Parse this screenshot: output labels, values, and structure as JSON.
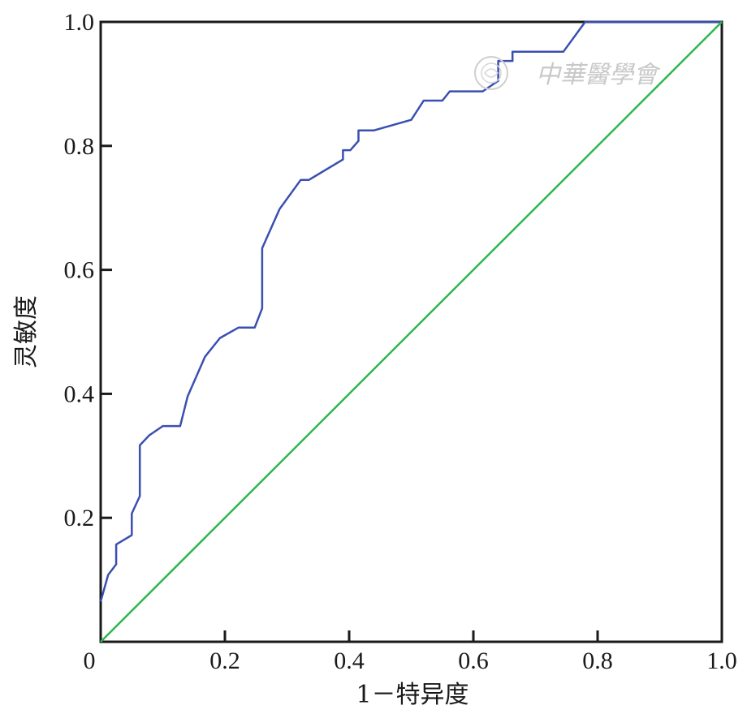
{
  "chart_data": {
    "type": "line",
    "xlabel": "1－特异度",
    "ylabel": "灵敏度",
    "xlim": [
      0,
      1
    ],
    "ylim": [
      0,
      1
    ],
    "x_ticks": [
      {
        "value": 0,
        "label": "0"
      },
      {
        "value": 0.2,
        "label": "0.2"
      },
      {
        "value": 0.4,
        "label": "0.4"
      },
      {
        "value": 0.6,
        "label": "0.6"
      },
      {
        "value": 0.8,
        "label": "0.8"
      },
      {
        "value": 1.0,
        "label": "1.0"
      }
    ],
    "y_ticks": [
      {
        "value": 0.2,
        "label": "0.2"
      },
      {
        "value": 0.4,
        "label": "0.4"
      },
      {
        "value": 0.6,
        "label": "0.6"
      },
      {
        "value": 0.8,
        "label": "0.8"
      },
      {
        "value": 1.0,
        "label": "1.0"
      }
    ],
    "grid": false,
    "series": [
      {
        "color": "#3a4fb0",
        "points": [
          [
            0,
            0.065
          ],
          [
            0.012,
            0.108
          ],
          [
            0.025,
            0.125
          ],
          [
            0.025,
            0.157
          ],
          [
            0.05,
            0.172
          ],
          [
            0.05,
            0.207
          ],
          [
            0.063,
            0.235
          ],
          [
            0.063,
            0.317
          ],
          [
            0.078,
            0.333
          ],
          [
            0.1,
            0.348
          ],
          [
            0.128,
            0.348
          ],
          [
            0.14,
            0.396
          ],
          [
            0.168,
            0.46
          ],
          [
            0.192,
            0.49
          ],
          [
            0.222,
            0.507
          ],
          [
            0.248,
            0.507
          ],
          [
            0.26,
            0.538
          ],
          [
            0.26,
            0.635
          ],
          [
            0.288,
            0.698
          ],
          [
            0.322,
            0.745
          ],
          [
            0.335,
            0.745
          ],
          [
            0.39,
            0.778
          ],
          [
            0.39,
            0.793
          ],
          [
            0.402,
            0.793
          ],
          [
            0.415,
            0.808
          ],
          [
            0.415,
            0.825
          ],
          [
            0.44,
            0.825
          ],
          [
            0.5,
            0.842
          ],
          [
            0.52,
            0.873
          ],
          [
            0.55,
            0.873
          ],
          [
            0.562,
            0.888
          ],
          [
            0.615,
            0.888
          ],
          [
            0.64,
            0.905
          ],
          [
            0.64,
            0.937
          ],
          [
            0.663,
            0.937
          ],
          [
            0.663,
            0.952
          ],
          [
            0.745,
            0.952
          ],
          [
            0.78,
            1.0
          ],
          [
            1.0,
            1.0
          ]
        ]
      },
      {
        "color": "#2db84a",
        "points": [
          [
            0,
            0
          ],
          [
            1,
            1
          ]
        ]
      }
    ]
  },
  "watermark": {
    "text": "中華醫學會",
    "color": "#c8c8c8"
  }
}
